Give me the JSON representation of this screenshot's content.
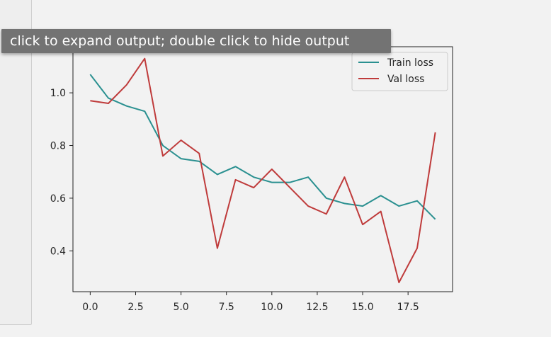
{
  "tooltip": {
    "text": "click to expand output; double click to hide output"
  },
  "colors": {
    "train": "#2a9090",
    "val": "#bf3b3b",
    "axes": "#222222",
    "plot_background": "#f2f2f2",
    "tooltip_background": "#737373"
  },
  "chart_data": {
    "type": "line",
    "title": "",
    "xlabel": "",
    "ylabel": "",
    "xlim": [
      -0.95,
      19.95
    ],
    "ylim": [
      0.245,
      1.175
    ],
    "grid": false,
    "legend_position": "top-right",
    "x_ticks": [
      0.0,
      2.5,
      5.0,
      7.5,
      10.0,
      12.5,
      15.0,
      17.5
    ],
    "x_tick_labels": [
      "0.0",
      "2.5",
      "5.0",
      "7.5",
      "10.0",
      "12.5",
      "15.0",
      "17.5"
    ],
    "y_ticks": [
      0.4,
      0.6,
      0.8,
      1.0
    ],
    "y_tick_labels": [
      "0.4",
      "0.6",
      "0.8",
      "1.0"
    ],
    "x": [
      0,
      1,
      2,
      3,
      4,
      5,
      6,
      7,
      8,
      9,
      10,
      11,
      12,
      13,
      14,
      15,
      16,
      17,
      18,
      19
    ],
    "series": [
      {
        "name": "Train loss",
        "color": "#2a9090",
        "values": [
          1.07,
          0.98,
          0.95,
          0.93,
          0.8,
          0.75,
          0.74,
          0.69,
          0.72,
          0.68,
          0.66,
          0.66,
          0.68,
          0.6,
          0.58,
          0.57,
          0.61,
          0.57,
          0.59,
          0.52
        ]
      },
      {
        "name": "Val loss",
        "color": "#bf3b3b",
        "values": [
          0.97,
          0.96,
          1.03,
          1.13,
          0.76,
          0.82,
          0.77,
          0.41,
          0.67,
          0.64,
          0.71,
          0.64,
          0.57,
          0.54,
          0.68,
          0.5,
          0.55,
          0.28,
          0.41,
          0.85
        ]
      }
    ]
  }
}
